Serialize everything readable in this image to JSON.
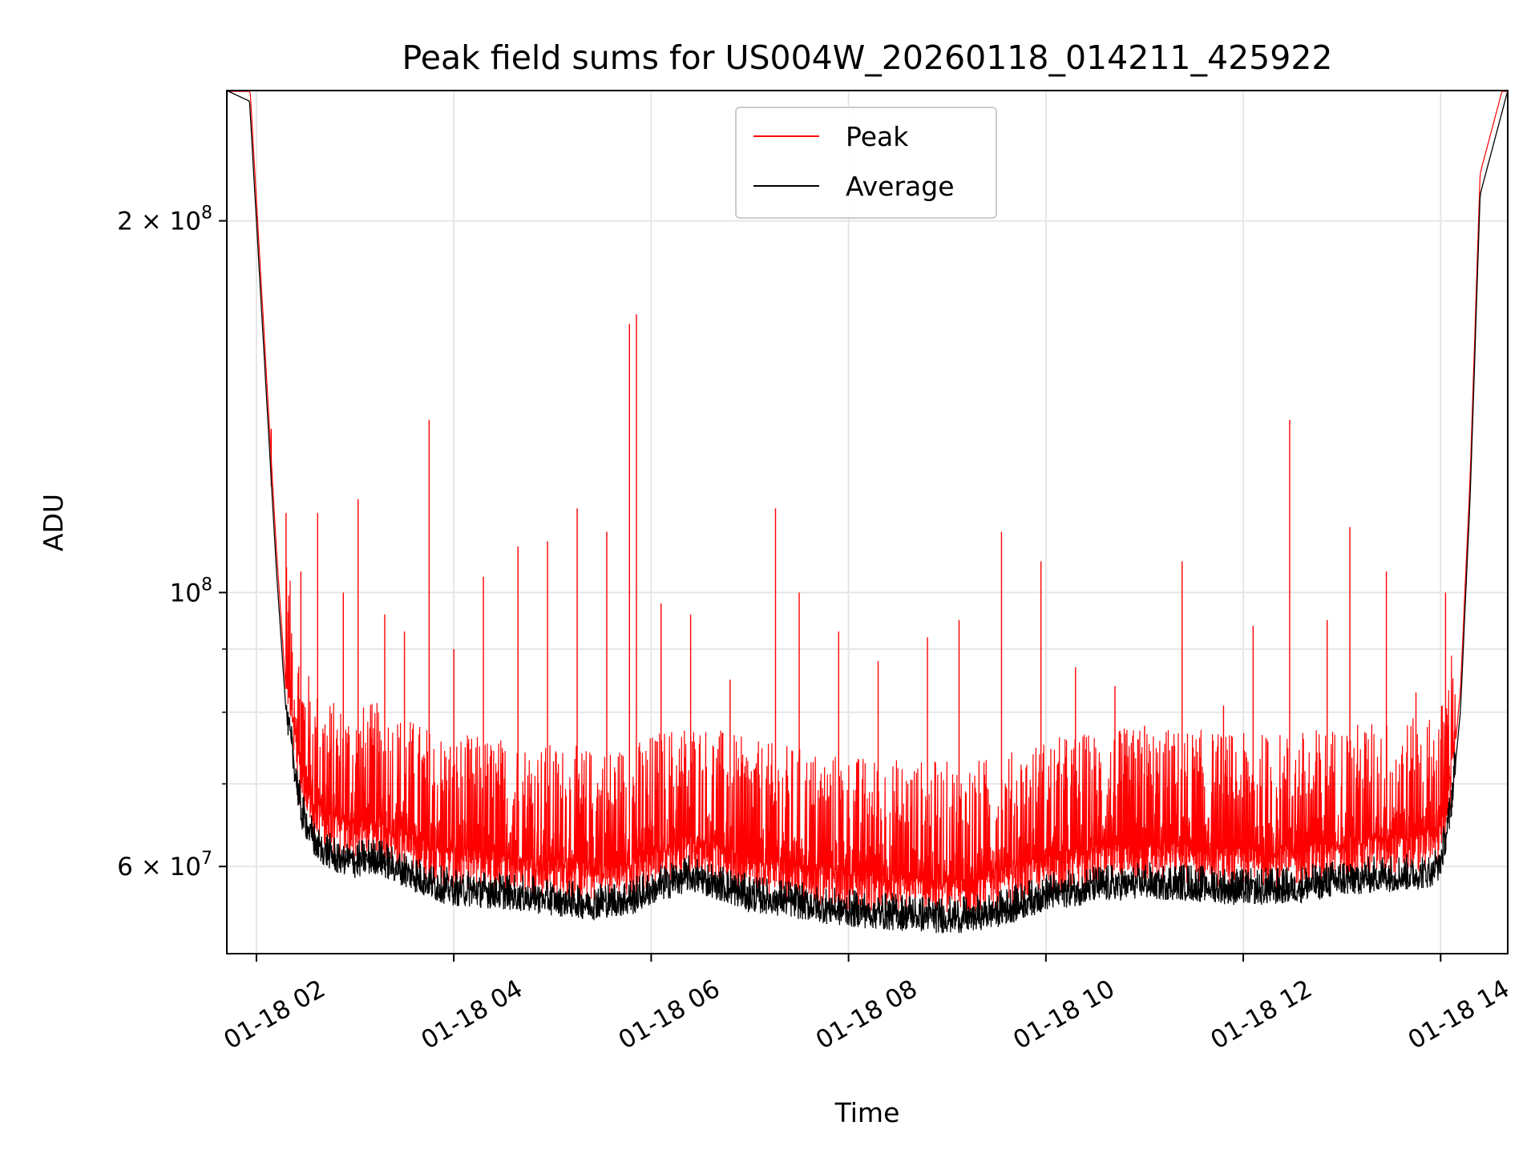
{
  "chart_data": {
    "type": "line",
    "title": "Peak field sums for US004W_20260118_014211_425922",
    "xlabel": "Time",
    "ylabel": "ADU",
    "yscale": "log",
    "xlim_hours": [
      1.7,
      14.68
    ],
    "ylim": [
      51000000,
      255000000
    ],
    "grid": true,
    "legend": {
      "placement": "top-center",
      "entries": [
        "Peak",
        "Average"
      ]
    },
    "x_ticks": [
      {
        "hour": 2,
        "label": "01-18 02"
      },
      {
        "hour": 4,
        "label": "01-18 04"
      },
      {
        "hour": 6,
        "label": "01-18 06"
      },
      {
        "hour": 8,
        "label": "01-18 08"
      },
      {
        "hour": 10,
        "label": "01-18 10"
      },
      {
        "hour": 12,
        "label": "01-18 12"
      },
      {
        "hour": 14,
        "label": "01-18 14"
      }
    ],
    "y_major_ticks": [
      {
        "value": 60000000,
        "mantissa": "6",
        "exponent": "7"
      },
      {
        "value": 100000000,
        "mantissa": "",
        "exponent": "8"
      },
      {
        "value": 200000000,
        "mantissa": "2",
        "exponent": "8"
      }
    ],
    "y_minor_ticks": [
      70000000,
      80000000,
      90000000
    ],
    "series": [
      {
        "name": "Average",
        "color": "#000000",
        "hours": [
          1.7,
          1.93,
          2.0,
          2.1,
          2.2,
          2.3,
          2.45,
          2.6,
          2.8,
          3.0,
          3.2,
          3.5,
          3.8,
          4.0,
          4.3,
          4.6,
          5.0,
          5.4,
          5.8,
          6.1,
          6.4,
          6.7,
          7.0,
          7.4,
          7.7,
          8.0,
          8.4,
          8.9,
          9.2,
          9.6,
          10.0,
          10.5,
          11.0,
          11.5,
          12.0,
          12.5,
          13.0,
          13.4,
          13.7,
          13.9,
          14.0,
          14.1,
          14.2,
          14.3,
          14.4,
          14.68
        ],
        "values": [
          255000000,
          250000000,
          200000000,
          145000000,
          105000000,
          80000000,
          66000000,
          62000000,
          60500000,
          60000000,
          60500000,
          59000000,
          57500000,
          57000000,
          56800000,
          56500000,
          56000000,
          55500000,
          56000000,
          57500000,
          58500000,
          57500000,
          56300000,
          55800000,
          55200000,
          54800000,
          54500000,
          54200000,
          54100000,
          55000000,
          56500000,
          57300000,
          57700000,
          57500000,
          57000000,
          57200000,
          58000000,
          58500000,
          58600000,
          59000000,
          60000000,
          66000000,
          80000000,
          120000000,
          210000000,
          255000000
        ]
      },
      {
        "name": "Peak",
        "color": "#ff0000",
        "spikes": [
          {
            "hour": 2.15,
            "value": 122000000
          },
          {
            "hour": 2.3,
            "value": 116000000
          },
          {
            "hour": 2.45,
            "value": 104000000
          },
          {
            "hour": 2.62,
            "value": 116000000
          },
          {
            "hour": 2.88,
            "value": 100000000
          },
          {
            "hour": 3.03,
            "value": 119000000
          },
          {
            "hour": 3.3,
            "value": 96000000
          },
          {
            "hour": 3.5,
            "value": 93000000
          },
          {
            "hour": 3.75,
            "value": 138000000
          },
          {
            "hour": 4.0,
            "value": 90000000
          },
          {
            "hour": 4.3,
            "value": 103000000
          },
          {
            "hour": 4.65,
            "value": 109000000
          },
          {
            "hour": 4.95,
            "value": 110000000
          },
          {
            "hour": 5.25,
            "value": 117000000
          },
          {
            "hour": 5.55,
            "value": 112000000
          },
          {
            "hour": 5.78,
            "value": 165000000
          },
          {
            "hour": 5.85,
            "value": 168000000
          },
          {
            "hour": 6.1,
            "value": 98000000
          },
          {
            "hour": 6.4,
            "value": 96000000
          },
          {
            "hour": 6.8,
            "value": 85000000
          },
          {
            "hour": 7.26,
            "value": 117000000
          },
          {
            "hour": 7.5,
            "value": 100000000
          },
          {
            "hour": 7.9,
            "value": 93000000
          },
          {
            "hour": 8.3,
            "value": 88000000
          },
          {
            "hour": 8.8,
            "value": 92000000
          },
          {
            "hour": 9.12,
            "value": 95000000
          },
          {
            "hour": 9.55,
            "value": 112000000
          },
          {
            "hour": 9.95,
            "value": 106000000
          },
          {
            "hour": 10.3,
            "value": 87000000
          },
          {
            "hour": 10.7,
            "value": 84000000
          },
          {
            "hour": 11.0,
            "value": 78000000
          },
          {
            "hour": 11.38,
            "value": 106000000
          },
          {
            "hour": 11.8,
            "value": 81000000
          },
          {
            "hour": 12.1,
            "value": 94000000
          },
          {
            "hour": 12.47,
            "value": 138000000
          },
          {
            "hour": 12.85,
            "value": 95000000
          },
          {
            "hour": 13.08,
            "value": 113000000
          },
          {
            "hour": 13.45,
            "value": 104000000
          },
          {
            "hour": 13.75,
            "value": 83000000
          },
          {
            "hour": 14.05,
            "value": 100000000
          }
        ]
      }
    ]
  }
}
